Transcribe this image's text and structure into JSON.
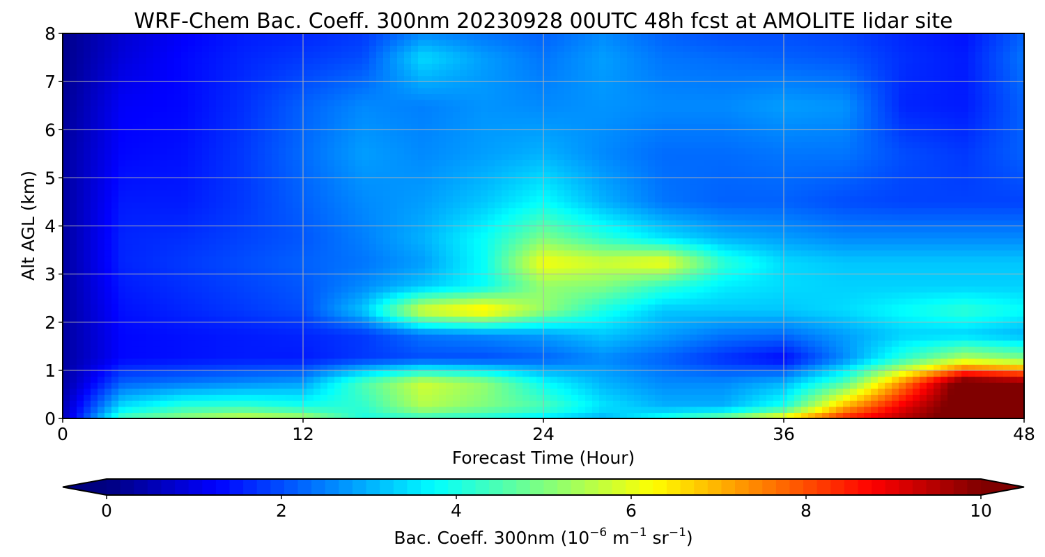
{
  "chart_data": {
    "type": "heatmap",
    "title": "WRF-Chem Bac. Coeff. 300nm  20230928 00UTC 48h fcst at AMOLITE lidar site",
    "xlabel": "Forecast Time (Hour)",
    "ylabel": "Alt AGL (km)",
    "xlim": [
      0,
      48
    ],
    "ylim": [
      0,
      8
    ],
    "x_ticks": [
      0,
      12,
      24,
      36,
      48
    ],
    "y_ticks": [
      0,
      1,
      2,
      3,
      4,
      5,
      6,
      7,
      8
    ],
    "grid": true,
    "colormap": "jet",
    "colorbar": {
      "orientation": "horizontal",
      "placement": "bottom",
      "range": [
        0,
        10
      ],
      "ticks": [
        0,
        2,
        4,
        6,
        8,
        10
      ],
      "extend": "both",
      "label_main": "Bac. Coeff. 300nm  (10",
      "label_exp1": "−6",
      "label_mid": " m",
      "label_exp2": "−1",
      "label_mid2": " sr",
      "label_exp3": "−1",
      "label_end": ")"
    },
    "x": [
      0,
      3,
      6,
      9,
      12,
      15,
      18,
      21,
      24,
      27,
      30,
      33,
      36,
      39,
      42,
      45,
      48
    ],
    "y": [
      0,
      0.25,
      0.75,
      1.25,
      1.75,
      2.25,
      2.75,
      3.25,
      3.75,
      4.5,
      5.5,
      6.5,
      7.5,
      8
    ],
    "z": [
      [
        0.5,
        4.5,
        5.2,
        5.8,
        5.5,
        4.0,
        4.2,
        4.0,
        3.5,
        3.0,
        4.0,
        5.0,
        6.5,
        8.5,
        9.5,
        10.5,
        10.5
      ],
      [
        0.5,
        3.5,
        4.2,
        4.3,
        4.0,
        4.2,
        5.5,
        5.0,
        4.5,
        3.5,
        3.0,
        3.0,
        4.0,
        7.0,
        9.0,
        10.5,
        10.5
      ],
      [
        0.3,
        2.2,
        2.4,
        2.6,
        2.8,
        4.5,
        5.8,
        5.2,
        3.8,
        3.0,
        2.6,
        2.6,
        3.0,
        4.5,
        7.5,
        10.5,
        10.0
      ],
      [
        0.3,
        1.3,
        1.4,
        1.5,
        1.5,
        1.8,
        2.0,
        2.0,
        2.2,
        2.6,
        2.2,
        1.7,
        1.3,
        2.6,
        4.2,
        5.5,
        5.0
      ],
      [
        0.3,
        1.3,
        1.4,
        1.5,
        1.6,
        1.8,
        2.4,
        2.6,
        2.8,
        3.2,
        2.8,
        2.4,
        2.3,
        2.8,
        3.3,
        3.3,
        3.0
      ],
      [
        0.3,
        1.4,
        1.6,
        1.8,
        2.0,
        3.2,
        6.0,
        6.6,
        5.2,
        4.0,
        3.2,
        3.2,
        3.2,
        3.4,
        3.8,
        4.2,
        3.8
      ],
      [
        0.3,
        1.5,
        1.7,
        1.9,
        2.1,
        2.6,
        3.2,
        3.8,
        5.2,
        5.0,
        4.2,
        3.6,
        3.4,
        3.3,
        3.3,
        3.3,
        3.3
      ],
      [
        0.3,
        1.6,
        1.8,
        2.0,
        2.2,
        2.4,
        2.8,
        3.8,
        6.2,
        5.8,
        6.2,
        4.2,
        3.4,
        3.2,
        3.2,
        3.2,
        3.2
      ],
      [
        0.3,
        1.6,
        1.7,
        1.9,
        2.1,
        2.5,
        3.0,
        3.8,
        5.0,
        4.2,
        3.5,
        3.0,
        2.8,
        2.6,
        2.6,
        2.6,
        2.6
      ],
      [
        0.3,
        1.5,
        1.5,
        1.8,
        2.2,
        2.6,
        2.8,
        3.2,
        3.8,
        3.0,
        2.4,
        2.2,
        2.2,
        2.0,
        1.9,
        1.9,
        1.9
      ],
      [
        0.3,
        1.3,
        1.4,
        1.8,
        2.3,
        2.8,
        2.6,
        2.8,
        3.0,
        2.6,
        2.3,
        2.3,
        2.4,
        2.4,
        2.0,
        1.8,
        2.2
      ],
      [
        0.2,
        1.2,
        1.3,
        1.7,
        2.2,
        2.6,
        2.5,
        2.7,
        2.6,
        2.7,
        2.6,
        2.6,
        2.8,
        2.7,
        1.6,
        1.5,
        2.2
      ],
      [
        0.1,
        0.9,
        1.3,
        1.6,
        1.8,
        2.0,
        3.4,
        2.8,
        2.4,
        2.8,
        2.4,
        2.3,
        2.2,
        2.1,
        1.7,
        1.5,
        2.4
      ],
      [
        0.1,
        0.8,
        1.2,
        1.5,
        1.6,
        1.8,
        2.6,
        2.4,
        2.2,
        2.6,
        2.2,
        2.0,
        2.0,
        1.9,
        1.6,
        1.4,
        2.2
      ]
    ]
  }
}
